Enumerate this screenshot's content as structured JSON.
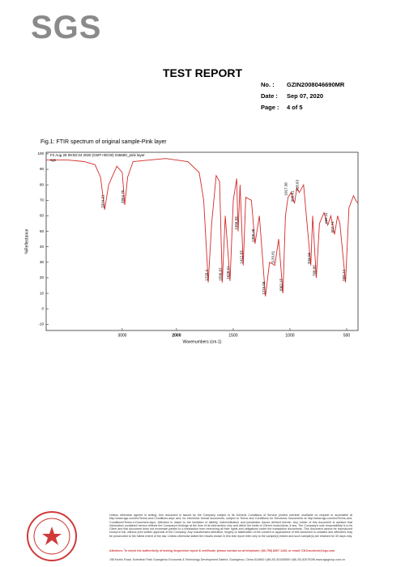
{
  "header": {
    "logo": "SGS",
    "title": "TEST REPORT",
    "fields": [
      {
        "label": "No.  :",
        "value": "GZIN2008046690MR"
      },
      {
        "label": "Date :",
        "value": "Sep 07, 2020"
      },
      {
        "label": "Page :",
        "value": "4 of 5"
      }
    ]
  },
  "figure_caption": "Fig.1: FTIR spectrum of original sample-Pink layer",
  "chart_data": {
    "type": "line",
    "subtitle": "sgs",
    "x_label": "Wavenumbers (cm-1)",
    "y_label": "%Reflectance",
    "x": [
      4400,
      4000,
      3700,
      3500,
      3400,
      3324,
      3250,
      3100,
      3000,
      2954,
      2900,
      2800,
      2500,
      2200,
      2000,
      1900,
      1800,
      1760,
      1720,
      1690,
      1650,
      1620,
      1597,
      1570,
      1528,
      1500,
      1470,
      1457,
      1440,
      1412,
      1390,
      1340,
      1308,
      1270,
      1216,
      1180,
      1133,
      1100,
      1062,
      1040,
      1017,
      990,
      960,
      940,
      918,
      880,
      816,
      800,
      768,
      740,
      700,
      666,
      640,
      607,
      580,
      560,
      510,
      480,
      440,
      420,
      400
    ],
    "series": [
      {
        "name": "Fri Aug 28 08:50:34 2020 (GMT+08:00) 046690_pink layer",
        "color": "#d42a2a",
        "values": [
          96,
          96,
          95,
          93,
          85,
          64,
          80,
          92,
          88,
          67,
          85,
          95,
          96,
          97,
          96,
          95,
          88,
          70,
          17,
          55,
          86,
          82,
          17,
          60,
          18,
          70,
          84,
          50,
          80,
          28,
          72,
          70,
          42,
          60,
          8,
          30,
          28,
          45,
          10,
          60,
          72,
          75,
          68,
          78,
          75,
          80,
          28,
          60,
          20,
          55,
          62,
          54,
          60,
          48,
          60,
          55,
          17,
          65,
          73,
          70,
          68
        ]
      }
    ],
    "xlim": [
      4400,
      400
    ],
    "x_scale_break": 2000,
    "xticks": [
      3000,
      2000,
      1500,
      1000,
      500
    ],
    "ylim": [
      -14,
      101
    ],
    "yticks": [
      -10,
      0,
      10,
      20,
      30,
      40,
      50,
      60,
      70,
      80,
      90,
      100
    ],
    "annotations": [
      {
        "text": "3324.21",
        "x": 3324.21,
        "y": 64
      },
      {
        "text": "2954.70",
        "x": 2954.7,
        "y": 67
      },
      {
        "text": "1720.4",
        "x": 1720.4,
        "y": 17
      },
      {
        "text": "1596.97",
        "x": 1596.97,
        "y": 17
      },
      {
        "text": "1528.51",
        "x": 1528.51,
        "y": 18
      },
      {
        "text": "1456.93",
        "x": 1456.93,
        "y": 50
      },
      {
        "text": "1412.63",
        "x": 1412.63,
        "y": 28
      },
      {
        "text": "1308.48",
        "x": 1308.48,
        "y": 42
      },
      {
        "text": "1216.58",
        "x": 1216.58,
        "y": 8
      },
      {
        "text": "1133.81",
        "x": 1133.81,
        "y": 28
      },
      {
        "text": "1062.15",
        "x": 1062.15,
        "y": 10
      },
      {
        "text": "1017.38",
        "x": 1017.38,
        "y": 72
      },
      {
        "text": "960.81",
        "x": 960.81,
        "y": 68
      },
      {
        "text": "918.63",
        "x": 918.63,
        "y": 75
      },
      {
        "text": "816.56",
        "x": 816.56,
        "y": 28
      },
      {
        "text": "768.05",
        "x": 768.05,
        "y": 20
      },
      {
        "text": "666.11",
        "x": 666.11,
        "y": 54
      },
      {
        "text": "607.74",
        "x": 607.74,
        "y": 48
      },
      {
        "text": "509.74",
        "x": 509.74,
        "y": 17
      }
    ]
  },
  "footer": {
    "disclaimer": "Unless otherwise agreed in writing, this document is issued by the Company subject to its General Conditions of Service printed overleaf, available on request or accessible at http://www.sgs.com/en/Terms-and-Conditions.aspx and, for electronic format documents, subject to Terms and Conditions for Electronic Documents at http://www.sgs.com/en/Terms-and-Conditions/Terms-e-Document.aspx. Attention is drawn to the limitation of liability, indemnification and jurisdiction issues defined therein. Any holder of this document is advised that information contained hereon reflects the Company's findings at the time of its intervention only and within the limits of Client's instructions, if any. The Company's sole responsibility is to its Client and this document does not exonerate parties to a transaction from exercising all their rights and obligations under the transaction documents. This document cannot be reproduced except in full, without prior written approval of the Company. Any unauthorized alteration, forgery or falsification of the content or appearance of this document is unlawful and offenders may be prosecuted to the fullest extent of the law. Unless otherwise stated the results shown in this test report refer only to the sample(s) tested and such sample(s) are retained for 30 days only.",
    "attention": "Attention: To check the authenticity of testing /inspection report & certificate, please contact us at telephone: (86-755) 8307 1443, or email: CN.Doccheck@sgs.com",
    "address": "198 Kezhu Road, Scientech Park Guangzhou Economic & Technology Development District, Guangzhou, China 510663   t (86-20) 82155555   f (86-20) 82075198   www.sgsgroup.com.cn"
  }
}
